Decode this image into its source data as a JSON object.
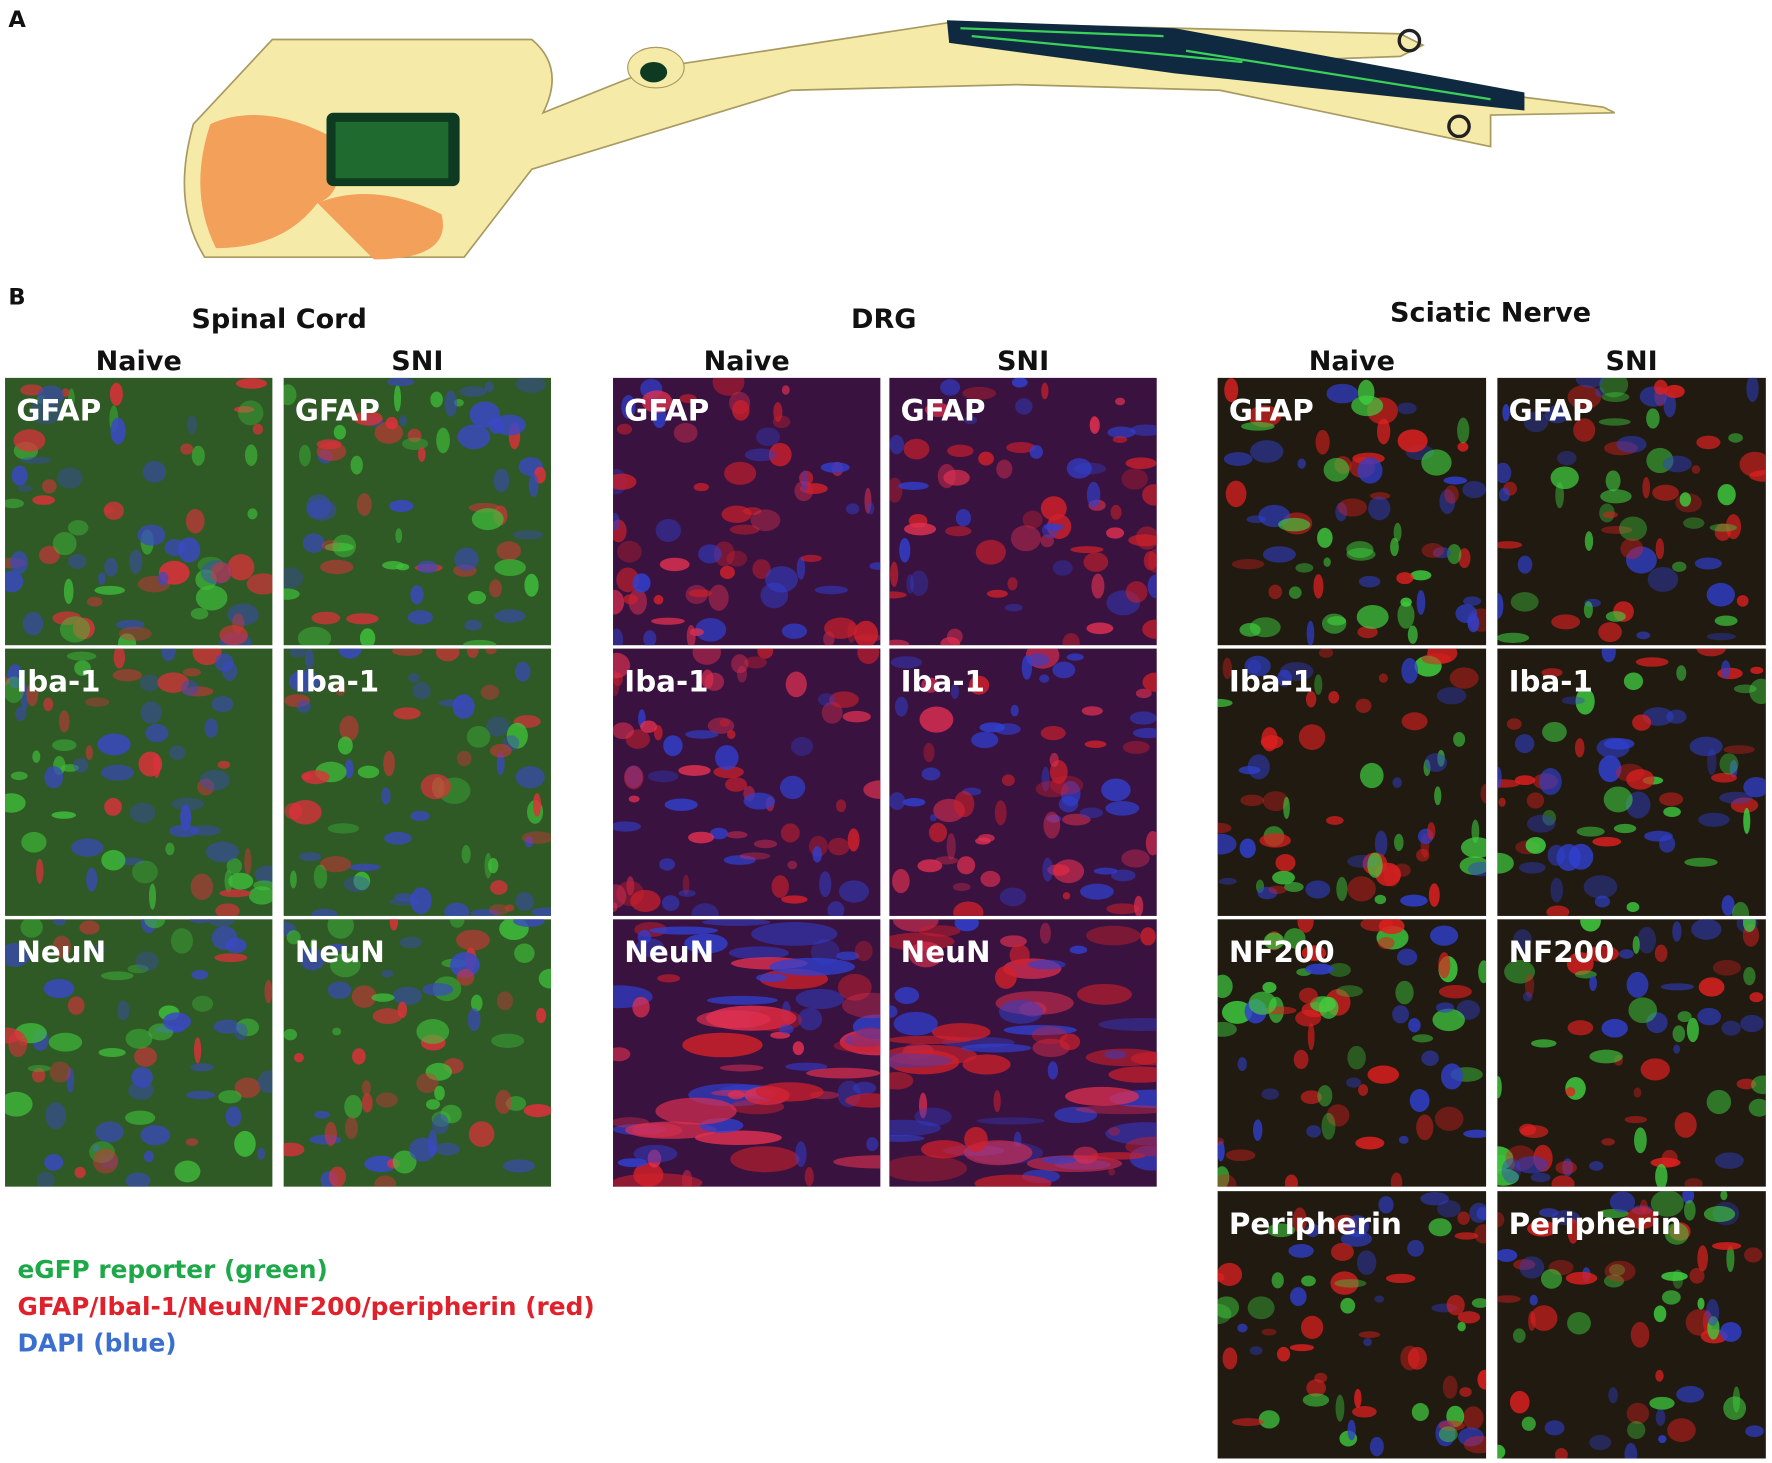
{
  "panel_labels": [
    "A",
    "B"
  ],
  "sections": [
    {
      "title": "Spinal Cord",
      "columns": [
        "Naive",
        "SNI"
      ],
      "rows": [
        "GFAP",
        "Iba-1",
        "NeuN"
      ]
    },
    {
      "title": "DRG",
      "columns": [
        "Naive",
        "SNI"
      ],
      "rows": [
        "GFAP",
        "Iba-1",
        "NeuN"
      ]
    },
    {
      "title": "Sciatic Nerve",
      "columns": [
        "Naive",
        "SNI"
      ],
      "rows": [
        "GFAP",
        "Iba-1",
        "NF200",
        "Peripherin"
      ]
    }
  ],
  "legend": [
    "eGFP reporter (green)",
    "GFAP/Ibal-1/NeuN/NF200/peripherin (red)",
    "DAPI (blue)"
  ]
}
